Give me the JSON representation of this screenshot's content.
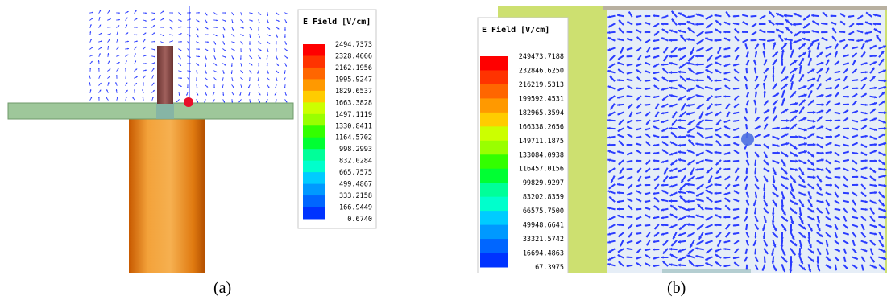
{
  "panel_a": {
    "caption": "(a)",
    "legend_title": "E Field [V/cm]",
    "legend_values": [
      "2494.7373",
      "2328.4666",
      "2162.1956",
      "1995.9247",
      "1829.6537",
      "1663.3828",
      "1497.1119",
      "1330.8411",
      "1164.5702",
      "998.2993",
      "832.0284",
      "665.7575",
      "499.4867",
      "333.2158",
      "166.9449",
      "0.6740"
    ]
  },
  "panel_b": {
    "caption": "(b)",
    "legend_title": "E Field [V/cm]",
    "legend_values": [
      "249473.7188",
      "232846.6250",
      "216219.5313",
      "199592.4531",
      "182965.3594",
      "166338.2656",
      "149711.1875",
      "133084.0938",
      "116457.0156",
      "99829.9297",
      "83202.8359",
      "66575.7500",
      "49948.6641",
      "33321.5742",
      "16694.4863",
      "67.3975"
    ]
  },
  "colors": {
    "scale": [
      "#ff0000",
      "#ff3300",
      "#ff6600",
      "#ff9900",
      "#ffcc00",
      "#ccff00",
      "#99ff00",
      "#33ff00",
      "#00ff33",
      "#00ff99",
      "#00ffcc",
      "#00ccff",
      "#0099ff",
      "#0066ff",
      "#0033ff"
    ],
    "arrow": "#2a3cff",
    "substrate": "#9ec79a",
    "coax": "#f08a10",
    "pin": "#8a4a48",
    "feed_point": "#e8102a",
    "background_b": "#cde070"
  }
}
